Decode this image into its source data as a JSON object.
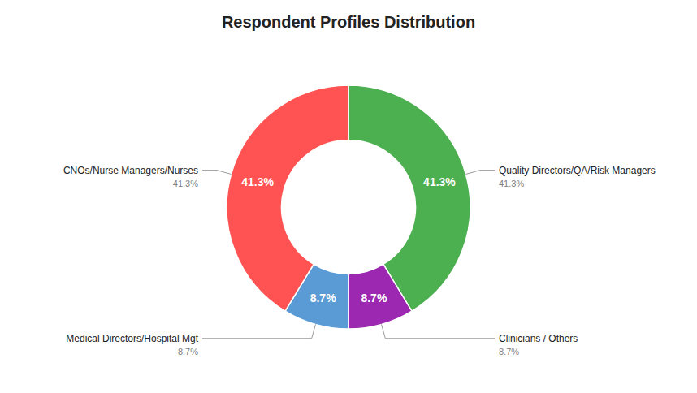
{
  "chart_data": {
    "type": "pie",
    "title": "Respondent Profiles Distribution",
    "categories": [
      "Quality Directors/QA/Risk Managers",
      "Clinicians / Others",
      "Medical Directors/Hospital Mgt",
      "CNOs/Nurse Managers/Nurses"
    ],
    "values": [
      41.3,
      8.7,
      8.7,
      41.3
    ],
    "value_labels": [
      "41.3%",
      "8.7%",
      "8.7%",
      "41.3%"
    ],
    "colors": [
      "#4CAF50",
      "#9C27B0",
      "#5B9BD5",
      "#FF5252"
    ],
    "data_labels": true
  }
}
